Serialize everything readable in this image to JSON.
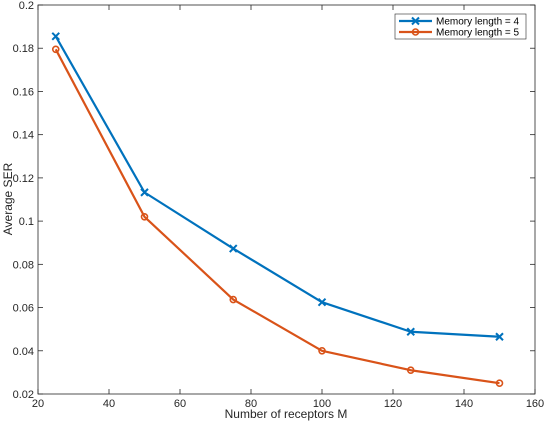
{
  "chart_data": {
    "type": "line",
    "xlabel": "Number of receptors M",
    "ylabel": "Average SER",
    "xlim": [
      20,
      160
    ],
    "ylim": [
      0.02,
      0.2
    ],
    "xticks": [
      20,
      40,
      60,
      80,
      100,
      120,
      140,
      160
    ],
    "yticks": [
      0.02,
      0.04,
      0.06,
      0.08,
      0.1,
      0.12,
      0.14,
      0.16,
      0.18,
      0.2
    ],
    "xtick_labels": [
      "20",
      "40",
      "60",
      "80",
      "100",
      "120",
      "140",
      "160"
    ],
    "ytick_labels": [
      "0.02",
      "0.04",
      "0.06",
      "0.08",
      "0.1",
      "0.12",
      "0.14",
      "0.16",
      "0.18",
      "0.2"
    ],
    "grid": false,
    "legend_position": "top-right",
    "series": [
      {
        "name": "Memory length = 4",
        "color": "#0072BD",
        "marker": "x",
        "x": [
          25,
          50,
          75,
          100,
          125,
          150
        ],
        "y": [
          0.1855,
          0.1133,
          0.0873,
          0.0625,
          0.0488,
          0.0465
        ]
      },
      {
        "name": "Memory length = 5",
        "color": "#D95319",
        "marker": "o",
        "x": [
          25,
          50,
          75,
          100,
          125,
          150
        ],
        "y": [
          0.1795,
          0.102,
          0.0637,
          0.04,
          0.031,
          0.025
        ]
      }
    ]
  }
}
